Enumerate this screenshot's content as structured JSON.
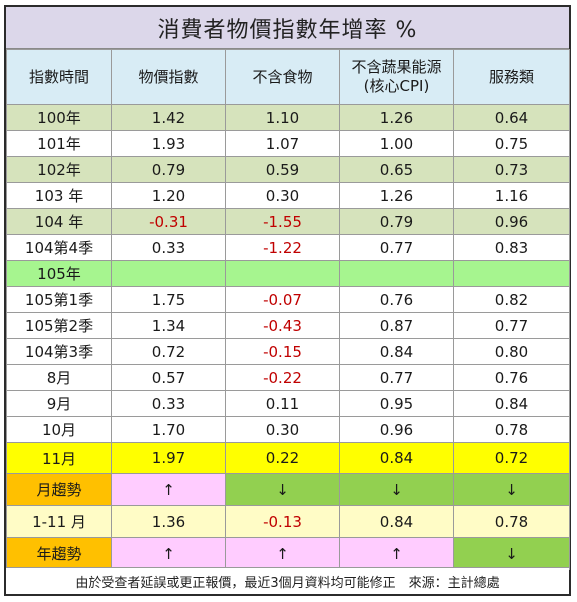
{
  "title": "消費者物價指數年增率 %",
  "headers": [
    "指數時間",
    "物價指數",
    "不含食物",
    "不含蔬果能源\n(核心CPI)",
    "服務類"
  ],
  "rows": [
    {
      "label": "100年",
      "values": [
        "1.42",
        "1.10",
        "1.26",
        "0.64"
      ],
      "style": "green"
    },
    {
      "label": "101年",
      "values": [
        "1.93",
        "1.07",
        "1.00",
        "0.75"
      ],
      "style": "plain"
    },
    {
      "label": "102年",
      "values": [
        "0.79",
        "0.59",
        "0.65",
        "0.73"
      ],
      "style": "green"
    },
    {
      "label": "103 年",
      "values": [
        "1.20",
        "0.30",
        "1.26",
        "1.16"
      ],
      "style": "plain"
    },
    {
      "label": "104 年",
      "values": [
        "-0.31",
        "-1.55",
        "0.79",
        "0.96"
      ],
      "style": "green"
    },
    {
      "label": "104第4季",
      "values": [
        "0.33",
        "-1.22",
        "0.77",
        "0.83"
      ],
      "style": "plain"
    },
    {
      "label": "105年",
      "values": [
        "",
        "",
        "",
        ""
      ],
      "style": "year105"
    },
    {
      "label": "105第1季",
      "values": [
        "1.75",
        "-0.07",
        "0.76",
        "0.82"
      ],
      "style": "plain"
    },
    {
      "label": "105第2季",
      "values": [
        "1.34",
        "-0.43",
        "0.87",
        "0.77"
      ],
      "style": "plain"
    },
    {
      "label": "104第3季",
      "values": [
        "0.72",
        "-0.15",
        "0.84",
        "0.80"
      ],
      "style": "plain"
    },
    {
      "label": "8月",
      "values": [
        "0.57",
        "-0.22",
        "0.77",
        "0.76"
      ],
      "style": "plain"
    },
    {
      "label": "9月",
      "values": [
        "0.33",
        "0.11",
        "0.95",
        "0.84"
      ],
      "style": "plain"
    },
    {
      "label": "10月",
      "values": [
        "1.70",
        "0.30",
        "0.96",
        "0.78"
      ],
      "style": "plain"
    }
  ],
  "november": {
    "label": "11月",
    "values": [
      "1.97",
      "0.22",
      "0.84",
      "0.72"
    ]
  },
  "month_trend": {
    "label": "月趨勢",
    "values": [
      "↑",
      "↓",
      "↓",
      "↓"
    ],
    "directions": [
      "up",
      "down",
      "down",
      "down"
    ]
  },
  "ytd": {
    "label": "1-11 月",
    "values": [
      "1.36",
      "-0.13",
      "0.84",
      "0.78"
    ]
  },
  "year_trend": {
    "label": "年趨勢",
    "values": [
      "↑",
      "↑",
      "↑",
      "↓"
    ],
    "directions": [
      "up",
      "up",
      "up",
      "down"
    ]
  },
  "footnote": "由於受查者延誤或更正報價，最近3個月資料均可能修正　來源：主計總處",
  "colors": {
    "title_bg": "#dcd7ea",
    "header_bg": "#d8ecf5",
    "green_row": "#d6e3bc",
    "year_row": "#a6f58f",
    "highlight": "#ffff00",
    "trend_label": "#ffc000",
    "ytd_bg": "#fffcc6",
    "up": "#ffccff",
    "down": "#92d050",
    "negative_text": "#c00000"
  }
}
